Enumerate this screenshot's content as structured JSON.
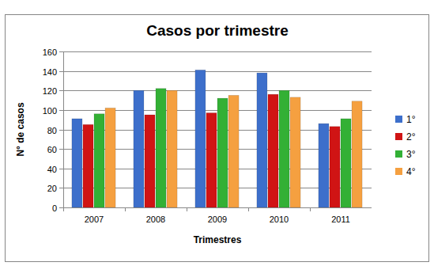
{
  "chart_data": {
    "type": "bar",
    "title": "Casos por trimestre",
    "x_label": "Trimestres",
    "y_label": "N° de casos",
    "categories": [
      "2007",
      "2008",
      "2009",
      "2010",
      "2011"
    ],
    "series": [
      {
        "name": "1°",
        "color": "#3d6fcb",
        "values": [
          91,
          120,
          141,
          138,
          86
        ]
      },
      {
        "name": "2°",
        "color": "#d01414",
        "values": [
          85,
          95,
          97,
          116,
          83
        ]
      },
      {
        "name": "3°",
        "color": "#33b035",
        "values": [
          96,
          122,
          112,
          120,
          91
        ]
      },
      {
        "name": "4°",
        "color": "#f5a040",
        "values": [
          102,
          120,
          115,
          113,
          109
        ]
      }
    ],
    "ylim": [
      0,
      160
    ],
    "yticks": [
      0,
      20,
      40,
      60,
      80,
      100,
      120,
      140,
      160
    ],
    "grid": true,
    "legend": "right"
  }
}
